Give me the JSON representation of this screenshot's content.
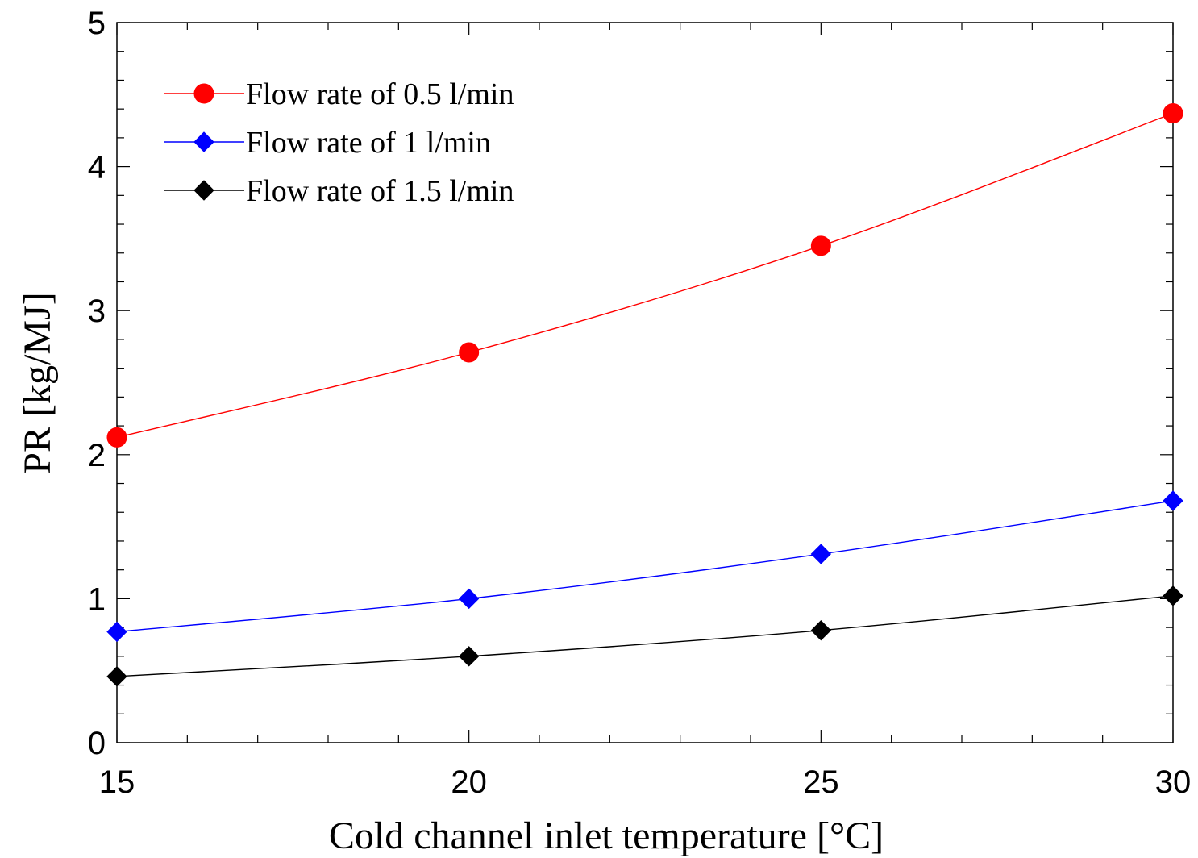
{
  "chart_data": {
    "type": "line",
    "title": "",
    "xlabel": "Cold channel inlet temperature [°C]",
    "ylabel": "PR [kg/MJ]",
    "xlim": [
      15,
      30
    ],
    "ylim": [
      0,
      5
    ],
    "xticks": [
      "15",
      "20",
      "25",
      "30"
    ],
    "yticks": [
      "0",
      "1",
      "2",
      "3",
      "4",
      "5"
    ],
    "grid": false,
    "legend_position": "top-left",
    "x": [
      15,
      20,
      25,
      30
    ],
    "series": [
      {
        "name": "Flow rate of 0.5 l/min",
        "values": [
          2.12,
          2.71,
          3.45,
          4.37
        ],
        "color": "#ff0000",
        "marker": "circle"
      },
      {
        "name": "Flow rate of 1 l/min",
        "values": [
          0.77,
          1.0,
          1.31,
          1.68
        ],
        "color": "#0000ff",
        "marker": "diamond"
      },
      {
        "name": "Flow rate of 1.5 l/min",
        "values": [
          0.46,
          0.6,
          0.78,
          1.02
        ],
        "color": "#000000",
        "marker": "diamond"
      }
    ]
  }
}
